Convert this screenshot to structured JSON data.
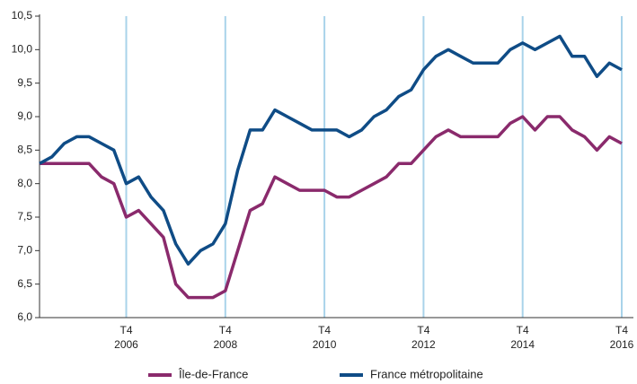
{
  "chart_data": {
    "type": "line",
    "categories": [
      null,
      null,
      null,
      null,
      null,
      null,
      null,
      "T4\n2006",
      null,
      null,
      null,
      null,
      null,
      null,
      null,
      "T4\n2008",
      null,
      null,
      null,
      null,
      null,
      null,
      null,
      "T4\n2010",
      null,
      null,
      null,
      null,
      null,
      null,
      null,
      "T4\n2012",
      null,
      null,
      null,
      null,
      null,
      null,
      null,
      "T4\n2014",
      null,
      null,
      null,
      null,
      null,
      null,
      null,
      "T4\n2016"
    ],
    "series": [
      {
        "name": "Île-de-France",
        "color": "#8a2a6c",
        "values": [
          8.3,
          8.3,
          8.3,
          8.3,
          8.3,
          8.1,
          8.0,
          7.5,
          7.6,
          7.4,
          7.2,
          6.5,
          6.3,
          6.3,
          6.3,
          6.4,
          7.0,
          7.6,
          7.7,
          8.1,
          8.0,
          7.9,
          7.9,
          7.9,
          7.8,
          7.8,
          7.9,
          8.0,
          8.1,
          8.3,
          8.3,
          8.5,
          8.7,
          8.8,
          8.7,
          8.7,
          8.7,
          8.7,
          8.9,
          9.0,
          8.8,
          9.0,
          9.0,
          8.8,
          8.7,
          8.5,
          8.7,
          8.6
        ]
      },
      {
        "name": "France métropolitaine",
        "color": "#0f4c86",
        "values": [
          8.3,
          8.4,
          8.6,
          8.7,
          8.7,
          8.6,
          8.5,
          8.0,
          8.1,
          7.8,
          7.6,
          7.1,
          6.8,
          7.0,
          7.1,
          7.4,
          8.2,
          8.8,
          8.8,
          9.1,
          9.0,
          8.9,
          8.8,
          8.8,
          8.8,
          8.7,
          8.8,
          9.0,
          9.1,
          9.3,
          9.4,
          9.7,
          9.9,
          10.0,
          9.9,
          9.8,
          9.8,
          9.8,
          10.0,
          10.1,
          10.0,
          10.1,
          10.2,
          9.9,
          9.9,
          9.6,
          9.8,
          9.7
        ]
      }
    ],
    "ylim": [
      6.0,
      10.5
    ],
    "yticks": [
      {
        "value": 6.0,
        "label": "6,0"
      },
      {
        "value": 6.5,
        "label": "6,5"
      },
      {
        "value": 7.0,
        "label": "7,0"
      },
      {
        "value": 7.5,
        "label": "7,5"
      },
      {
        "value": 8.0,
        "label": "8,0"
      },
      {
        "value": 8.5,
        "label": "8,5"
      },
      {
        "value": 9.0,
        "label": "9,0"
      },
      {
        "value": 9.5,
        "label": "9,5"
      },
      {
        "value": 10.0,
        "label": "10,0"
      },
      {
        "value": 10.5,
        "label": "10,5"
      }
    ],
    "legend": "bottom"
  }
}
